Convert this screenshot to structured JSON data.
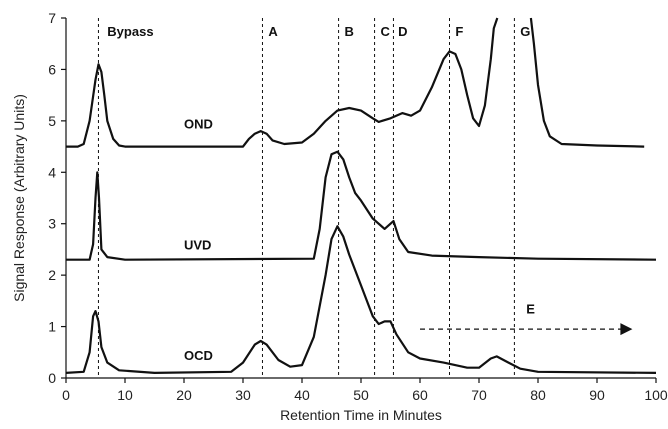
{
  "chart_data": {
    "type": "line",
    "title": "",
    "xlabel": "Retention Time in Minutes",
    "ylabel": "Signal Response (Arbitrary Units)",
    "xlim": [
      0,
      100
    ],
    "ylim": [
      0,
      7
    ],
    "xticks": [
      0,
      10,
      20,
      30,
      40,
      50,
      60,
      70,
      80,
      90,
      100
    ],
    "yticks": [
      0,
      1,
      2,
      3,
      4,
      5,
      6,
      7
    ],
    "grid": false,
    "series": [
      {
        "name": "OND",
        "label_pos": [
          20,
          4.85
        ],
        "points": [
          [
            0,
            4.5
          ],
          [
            2,
            4.5
          ],
          [
            3,
            4.55
          ],
          [
            4,
            5.0
          ],
          [
            5,
            5.8
          ],
          [
            5.5,
            6.1
          ],
          [
            6,
            5.95
          ],
          [
            6.5,
            5.5
          ],
          [
            7,
            5.0
          ],
          [
            8,
            4.65
          ],
          [
            9,
            4.52
          ],
          [
            10,
            4.5
          ],
          [
            30,
            4.5
          ],
          [
            31,
            4.65
          ],
          [
            32,
            4.75
          ],
          [
            33,
            4.8
          ],
          [
            34,
            4.75
          ],
          [
            35,
            4.62
          ],
          [
            37,
            4.55
          ],
          [
            40,
            4.58
          ],
          [
            42,
            4.75
          ],
          [
            44,
            5.0
          ],
          [
            46,
            5.2
          ],
          [
            48,
            5.25
          ],
          [
            50,
            5.2
          ],
          [
            52,
            5.05
          ],
          [
            53,
            4.98
          ],
          [
            55,
            5.05
          ],
          [
            57,
            5.15
          ],
          [
            58.5,
            5.1
          ],
          [
            60,
            5.2
          ],
          [
            62,
            5.65
          ],
          [
            64,
            6.2
          ],
          [
            65,
            6.35
          ],
          [
            66,
            6.3
          ],
          [
            67,
            6.0
          ],
          [
            68,
            5.5
          ],
          [
            69,
            5.05
          ],
          [
            70,
            4.9
          ],
          [
            71,
            5.3
          ],
          [
            72,
            6.2
          ],
          [
            72.5,
            6.8
          ],
          [
            73.1,
            7.0
          ]
        ]
      },
      {
        "name": "OND",
        "points": [
          [
            78.8,
            7.0
          ],
          [
            79.3,
            6.5
          ],
          [
            80,
            5.7
          ],
          [
            81,
            5.0
          ],
          [
            82,
            4.7
          ],
          [
            84,
            4.55
          ],
          [
            90,
            4.52
          ],
          [
            98,
            4.5
          ]
        ]
      },
      {
        "name": "UVD",
        "label_pos": [
          20,
          2.5
        ],
        "points": [
          [
            0,
            2.3
          ],
          [
            4,
            2.3
          ],
          [
            4.6,
            2.6
          ],
          [
            5.0,
            3.5
          ],
          [
            5.3,
            4.0
          ],
          [
            5.6,
            3.5
          ],
          [
            6,
            2.5
          ],
          [
            7,
            2.35
          ],
          [
            10,
            2.3
          ],
          [
            42,
            2.32
          ],
          [
            43,
            2.9
          ],
          [
            44,
            3.9
          ],
          [
            45,
            4.35
          ],
          [
            46,
            4.4
          ],
          [
            47,
            4.25
          ],
          [
            48,
            3.9
          ],
          [
            49,
            3.6
          ],
          [
            50,
            3.45
          ],
          [
            52,
            3.1
          ],
          [
            54,
            2.9
          ],
          [
            55,
            3.0
          ],
          [
            55.5,
            3.05
          ],
          [
            56.5,
            2.7
          ],
          [
            58,
            2.45
          ],
          [
            62,
            2.38
          ],
          [
            70,
            2.35
          ],
          [
            80,
            2.32
          ],
          [
            100,
            2.3
          ]
        ]
      },
      {
        "name": "OCD",
        "label_pos": [
          20,
          0.35
        ],
        "points": [
          [
            0,
            0.1
          ],
          [
            3,
            0.12
          ],
          [
            4,
            0.5
          ],
          [
            4.6,
            1.2
          ],
          [
            5,
            1.3
          ],
          [
            5.5,
            1.1
          ],
          [
            6,
            0.6
          ],
          [
            7,
            0.3
          ],
          [
            9,
            0.15
          ],
          [
            15,
            0.1
          ],
          [
            28,
            0.12
          ],
          [
            30,
            0.3
          ],
          [
            32,
            0.65
          ],
          [
            33,
            0.72
          ],
          [
            34,
            0.65
          ],
          [
            36,
            0.35
          ],
          [
            38,
            0.22
          ],
          [
            40,
            0.25
          ],
          [
            42,
            0.8
          ],
          [
            44,
            2.0
          ],
          [
            45,
            2.7
          ],
          [
            46,
            2.95
          ],
          [
            47,
            2.75
          ],
          [
            48,
            2.4
          ],
          [
            49,
            2.1
          ],
          [
            50,
            1.8
          ],
          [
            51,
            1.5
          ],
          [
            52,
            1.2
          ],
          [
            53,
            1.05
          ],
          [
            54,
            1.1
          ],
          [
            55,
            1.1
          ],
          [
            56,
            0.85
          ],
          [
            58,
            0.5
          ],
          [
            60,
            0.38
          ],
          [
            64,
            0.3
          ],
          [
            68,
            0.2
          ],
          [
            70,
            0.2
          ],
          [
            72,
            0.38
          ],
          [
            73,
            0.42
          ],
          [
            75,
            0.3
          ],
          [
            77,
            0.18
          ],
          [
            80,
            0.12
          ],
          [
            100,
            0.1
          ]
        ]
      }
    ],
    "markers": [
      {
        "label": "Bypass",
        "x": 5.5,
        "label_x": 7.0
      },
      {
        "label": "A",
        "x": 33.3,
        "label_x": 34.3
      },
      {
        "label": "B",
        "x": 46.2,
        "label_x": 47.2
      },
      {
        "label": "C",
        "x": 52.3,
        "label_x": 53.3
      },
      {
        "label": "D",
        "x": 55.5,
        "label_x": 56.3
      },
      {
        "label": "F",
        "x": 65.0,
        "label_x": 66.0
      },
      {
        "label": "G",
        "x": 76.0,
        "label_x": 77.0
      }
    ],
    "annotation": {
      "label": "E",
      "x_start": 60,
      "x_end": 96,
      "y": 0.95,
      "label_x": 78,
      "label_y": 1.25
    }
  }
}
